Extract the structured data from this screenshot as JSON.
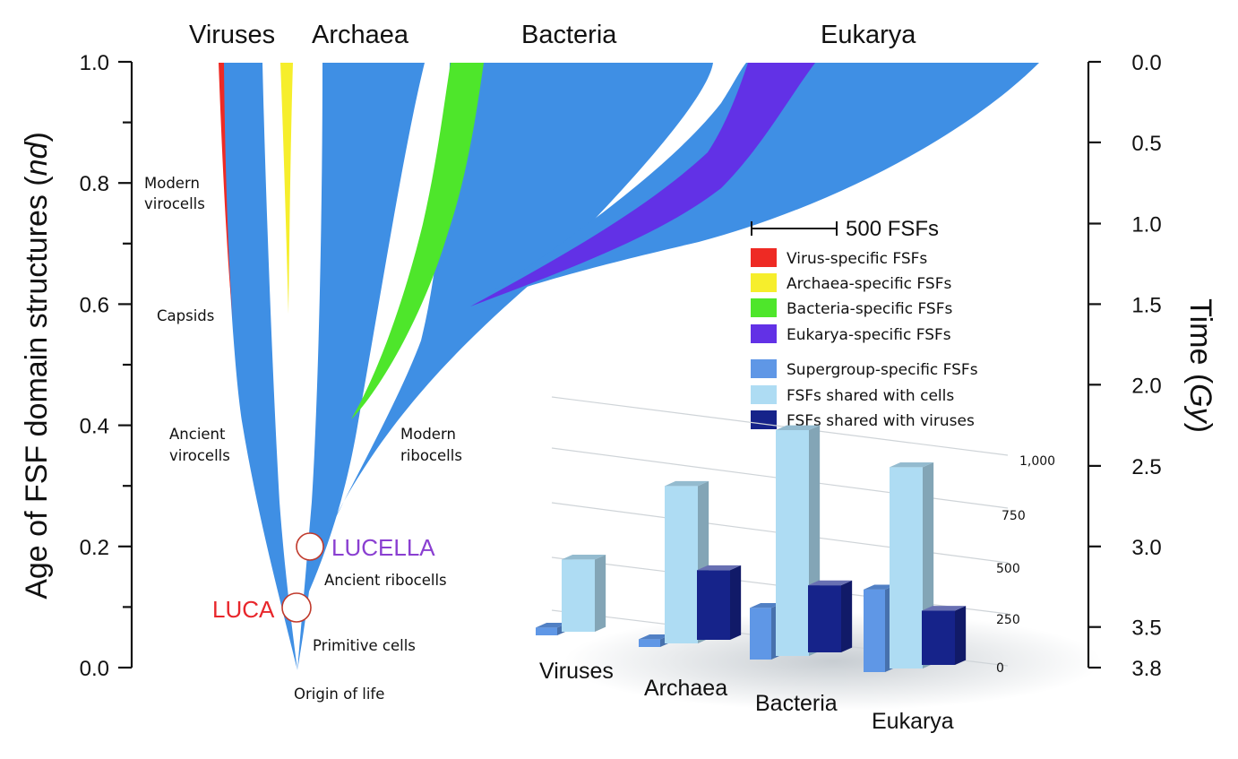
{
  "chart_data": [
    {
      "type": "area",
      "xlabel": "",
      "ylabel_prefix": "Age of FSF domain structures (",
      "ylabel_italic": "nd",
      "ylabel_suffix": ")",
      "ylabel_right_prefix": "Time (",
      "ylabel_right_italic": "Gy",
      "ylabel_right_suffix": ")",
      "ylim": [
        0,
        1
      ],
      "y_ticks": [
        "0.0",
        "0.2",
        "0.4",
        "0.6",
        "0.8",
        "1.0"
      ],
      "time_ticks": [
        {
          "label": "0.0",
          "nd": 1.0
        },
        {
          "label": "0.5",
          "nd": 0.867
        },
        {
          "label": "1.0",
          "nd": 0.733
        },
        {
          "label": "1.5",
          "nd": 0.6
        },
        {
          "label": "2.0",
          "nd": 0.467
        },
        {
          "label": "2.5",
          "nd": 0.333
        },
        {
          "label": "3.0",
          "nd": 0.2
        },
        {
          "label": "3.5",
          "nd": 0.067
        },
        {
          "label": "3.8",
          "nd": 0.0
        }
      ],
      "supergroups": [
        "Viruses",
        "Archaea",
        "Bacteria",
        "Eukarya"
      ],
      "annotations": {
        "modern_virocells_1": "Modern",
        "modern_virocells_2": "virocells",
        "capsids": "Capsids",
        "ancient_virocells_1": "Ancient",
        "ancient_virocells_2": "virocells",
        "modern_ribocells_1": "Modern",
        "modern_ribocells_2": "ribocells",
        "ancient_ribocells": "Ancient ribocells",
        "primitive_cells": "Primitive cells",
        "origin_of_life": "Origin of life"
      },
      "nodes": [
        {
          "label": "LUCA",
          "nd": 0.1,
          "color": "#e8262b"
        },
        {
          "label": "LUCELLA",
          "nd": 0.2,
          "color": "#8a3fd1"
        }
      ],
      "specific_fsf_onset_nd": {
        "virus_specific": 0.58,
        "archaea_specific": 0.59,
        "bacteria_specific": 0.41,
        "eukarya_specific": 0.6
      },
      "scale_bar_label": "500 FSFs",
      "legend": [
        {
          "label": "Virus-specific FSFs",
          "color": "#ee2a24"
        },
        {
          "label": "Archaea-specific FSFs",
          "color": "#f6ee2c"
        },
        {
          "label": "Bacteria-specific FSFs",
          "color": "#4ee62b"
        },
        {
          "label": "Eukarya-specific FSFs",
          "color": "#6231e6"
        },
        {
          "label": "Supergroup-specific FSFs",
          "color": "#5f97e6"
        },
        {
          "label": "FSFs shared with cells",
          "color": "#aedcf3"
        },
        {
          "label": "FSFs shared with viruses",
          "color": "#16238a"
        }
      ],
      "colors": {
        "tree": "#3f8fe4"
      }
    },
    {
      "type": "bar",
      "categories": [
        "Viruses",
        "Archaea",
        "Bacteria",
        "Eukarya"
      ],
      "y_ticks": [
        "0",
        "250",
        "500",
        "750",
        "1,000"
      ],
      "ylim": [
        0,
        1000
      ],
      "series": [
        {
          "name": "Supergroup-specific FSFs",
          "color": "#5f97e6",
          "values": [
            30,
            30,
            200,
            320
          ]
        },
        {
          "name": "FSFs shared with cells",
          "color": "#aedcf3",
          "values": [
            280,
            610,
            875,
            780
          ]
        },
        {
          "name": "FSFs shared with viruses",
          "color": "#16238a",
          "values": [
            0,
            270,
            260,
            210
          ]
        }
      ]
    }
  ]
}
